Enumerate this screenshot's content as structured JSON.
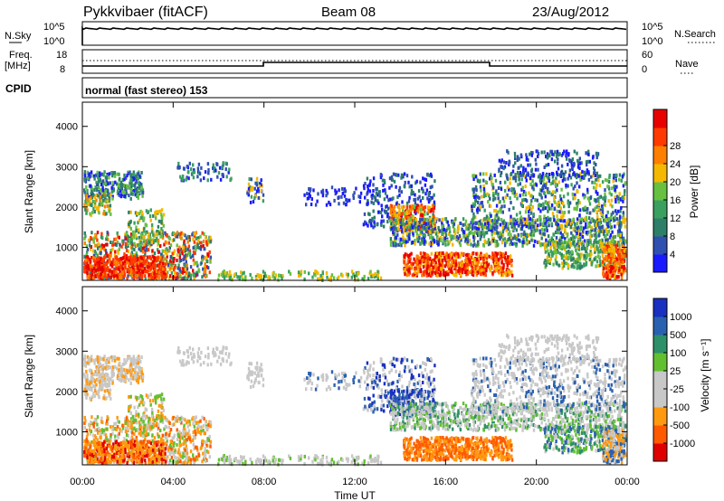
{
  "header": {
    "radar": "Pykkvibaer (fitACF)",
    "beam": "Beam 08",
    "date": "23/Aug/2012"
  },
  "top_panels": {
    "nsky_label": "N.Sky",
    "nsky_ticks": [
      "10^5",
      "10^0"
    ],
    "nsearch_label": "N.Search",
    "nsearch_ticks": [
      "10^5",
      "10^0"
    ],
    "freq_label_1": "Freq.",
    "freq_label_2": "[MHz]",
    "freq_ticks": [
      "18",
      "8"
    ],
    "nave_label": "Nave",
    "nave_ticks": [
      "60",
      "0"
    ],
    "cpid_label": "CPID",
    "cpid_text": "normal (fast stereo) 153"
  },
  "colors": {
    "power": [
      "#1a1aff",
      "#3050b0",
      "#2e7f68",
      "#3aa060",
      "#68c040",
      "#f5b800",
      "#ff7f00",
      "#ff3a00",
      "#e80000"
    ],
    "velocity": [
      "#e00000",
      "#ff5a00",
      "#ff9a10",
      "#c8c8c8",
      "#c8c8c8",
      "#62c030",
      "#2e9068",
      "#2a60b0",
      "#1a30c0"
    ]
  },
  "chart_data": [
    {
      "type": "heatmap",
      "name": "power",
      "ylabel": "Slant Range [km]",
      "yticks": [
        1000,
        2000,
        3000,
        4000
      ],
      "ylim": [
        180,
        4600
      ],
      "xlim_hours": [
        0,
        24
      ],
      "colorbar_label": "Power [dB]",
      "colorbar_ticks": [
        "4",
        "8",
        "12",
        "16",
        "20",
        "24",
        "28"
      ],
      "note": "range-time backscatter power map (values estimated visually)"
    },
    {
      "type": "heatmap",
      "name": "velocity",
      "ylabel": "Slant Range [km]",
      "yticks": [
        1000,
        2000,
        3000,
        4000
      ],
      "ylim": [
        180,
        4600
      ],
      "xlim_hours": [
        0,
        24
      ],
      "colorbar_label": "Velocity [m s⁻¹]",
      "colorbar_ticks": [
        "-1000",
        "-500",
        "-100",
        "-25",
        "25",
        "100",
        "500",
        "1000"
      ],
      "xlabel": "Time UT",
      "xtick_labels": [
        "00:00",
        "04:00",
        "08:00",
        "12:00",
        "16:00",
        "20:00",
        "00:00"
      ]
    }
  ]
}
